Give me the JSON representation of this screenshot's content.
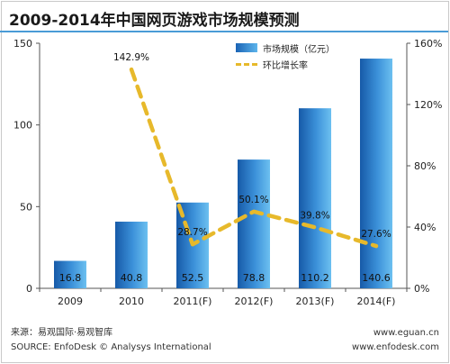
{
  "title": "2009-2014年中国网页游戏市场规模预测",
  "legend": {
    "bar_label": "市场规模（亿元）",
    "line_label": "环比增长率"
  },
  "footer": {
    "source_cn": "来源：易观国际·易观智库",
    "source_en": "SOURCE: EnfoDesk © Analysys International",
    "url1": "www.eguan.cn",
    "url2": "www.enfodesk.com"
  },
  "colors": {
    "bar_dark": "#1a63b5",
    "bar_light": "#5db5ec",
    "line": "#e7b92b",
    "title_rule": "#4a9bd6"
  },
  "chart_data": {
    "type": "bar",
    "categories": [
      "2009",
      "2010",
      "2011(F)",
      "2012(F)",
      "2013(F)",
      "2014(F)"
    ],
    "series": [
      {
        "name": "市场规模（亿元）",
        "type": "bar",
        "axis": "left",
        "values": [
          16.8,
          40.8,
          52.5,
          78.8,
          110.2,
          140.6
        ],
        "labels": [
          "16.8",
          "40.8",
          "52.5",
          "78.8",
          "110.2",
          "140.6"
        ]
      },
      {
        "name": "环比增长率",
        "type": "line",
        "style": "dashed",
        "axis": "right",
        "values": [
          null,
          142.9,
          28.7,
          50.1,
          39.8,
          27.6
        ],
        "labels": [
          null,
          "142.9%",
          "28.7%",
          "50.1%",
          "39.8%",
          "27.6%"
        ]
      }
    ],
    "y_left": {
      "ylim": [
        0,
        150
      ],
      "ticks": [
        "0",
        "50",
        "100",
        "150"
      ]
    },
    "y_right": {
      "ylim": [
        0,
        160
      ],
      "ticks": [
        "0%",
        "40%",
        "80%",
        "120%",
        "160%"
      ]
    },
    "grid": false,
    "legend_position": "top-right"
  }
}
